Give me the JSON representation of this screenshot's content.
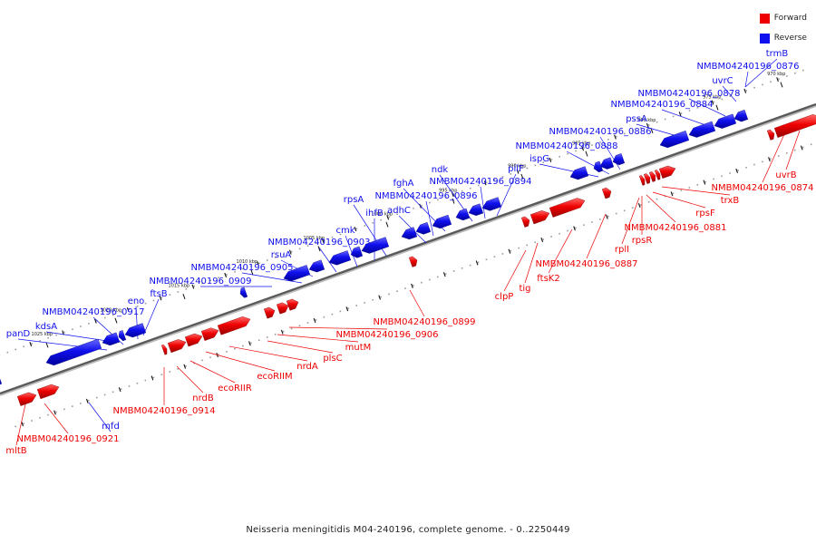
{
  "caption": "Neisseria meningitidis M04-240196, complete genome. - 0..2250449",
  "legend": {
    "forward_label": "Forward",
    "reverse_label": "Reverse",
    "forward_color": "#ee0000",
    "reverse_color": "#1010ee"
  },
  "scale_ticks": [
    "970 kbp",
    "975 kbp",
    "980 kbp",
    "985 kbp",
    "990 kbp",
    "995 kbp",
    "1000 kbp",
    "1005 kbp",
    "1010 kbp",
    "1015 kbp",
    "1020 kbp",
    "1025 kbp"
  ],
  "reverse_genes": [
    "trmB",
    "NMBM04240196_0876",
    "uvrC",
    "NMBM04240196_0878",
    "NMBM04240196_0884",
    "pssA",
    "NMBM04240196_0886",
    "NMBM04240196_0888",
    "ispG",
    "pilF",
    "ndk",
    "NMBM04240196_0894",
    "fghA",
    "NMBM04240196_0896",
    "adhC",
    "rpsA",
    "ihfB",
    "cmk",
    "NMBM04240196_0903",
    "rsuA",
    "NMBM04240196_0905",
    "NMBM04240196_0909",
    "ftsB",
    "eno",
    "NMBM04240196_0917",
    "kdsA",
    "panD",
    "mfd"
  ],
  "forward_genes": [
    "uvrB",
    "NMBM04240196_0874",
    "trxB",
    "rpsF",
    "NMBM04240196_0881",
    "rpsR",
    "rplI",
    "NMBM04240196_0887",
    "ftsK2",
    "tig",
    "clpP",
    "NMBM04240196_0899",
    "NMBM04240196_0906",
    "mutM",
    "plsC",
    "nrdA",
    "ecoRIIM",
    "ecoRIIR",
    "nrdB",
    "NMBM04240196_0914",
    "NMBM04240196_0921",
    "mltB"
  ]
}
